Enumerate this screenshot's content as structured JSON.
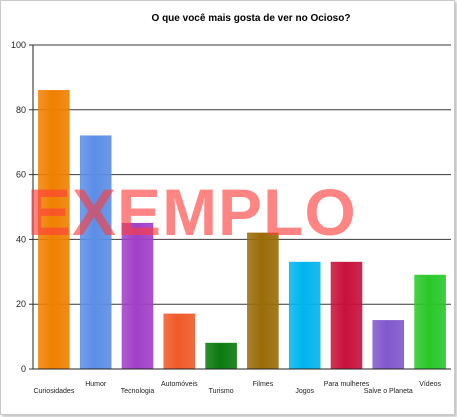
{
  "chart_data": {
    "type": "bar",
    "title": "O que você mais gosta de ver no Ocioso?",
    "categories": [
      "Curiosidades",
      "Humor",
      "Tecnologia",
      "Automóveis",
      "Turismo",
      "Filmes",
      "Jogos",
      "Para mulheres",
      "Salve o Planeta",
      "Vídeos"
    ],
    "values": [
      86,
      72,
      45,
      17,
      8,
      42,
      33,
      33,
      15,
      29
    ],
    "colors": [
      "#f08000",
      "#5b8ee6",
      "#a040c8",
      "#f05a28",
      "#0a7a10",
      "#9a6c08",
      "#00b4f0",
      "#c8103c",
      "#8058cc",
      "#28c828"
    ],
    "ylim": [
      0,
      100
    ],
    "yticks": [
      0,
      20,
      40,
      60,
      80,
      100
    ],
    "grid": true,
    "xlabel": "",
    "ylabel": ""
  },
  "watermark": {
    "text": "EXEMPLO",
    "color": "#ff3c3c"
  }
}
